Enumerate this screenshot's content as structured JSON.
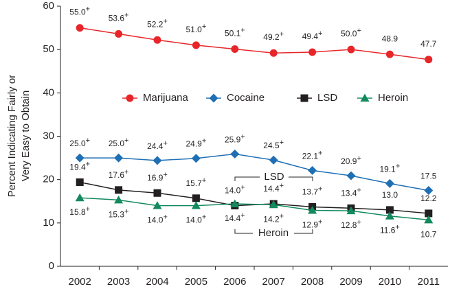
{
  "chart_data": {
    "type": "line",
    "ylabel": [
      "Percent Indicating Fairly or",
      "Very Easy to Obtain"
    ],
    "categories": [
      "2002",
      "2003",
      "2004",
      "2005",
      "2006",
      "2007",
      "2008",
      "2009",
      "2010",
      "2011"
    ],
    "ylim": [
      0,
      60
    ],
    "yticks": [
      0,
      10,
      20,
      30,
      40,
      50,
      60
    ],
    "series": [
      {
        "name": "Marijuana",
        "color": "#e8262a",
        "marker": "circle",
        "values": [
          55.0,
          53.6,
          52.2,
          51.0,
          50.1,
          49.2,
          49.4,
          50.0,
          48.9,
          47.7
        ],
        "value_labels": [
          "55.0+",
          "53.6+",
          "52.2+",
          "51.0+",
          "50.1+",
          "49.2+",
          "49.4+",
          "50.0+",
          "48.9",
          "47.7"
        ]
      },
      {
        "name": "Cocaine",
        "color": "#1f6fb4",
        "marker": "diamond",
        "values": [
          25.0,
          25.0,
          24.4,
          24.9,
          25.9,
          24.5,
          22.1,
          20.9,
          19.1,
          17.5
        ],
        "value_labels": [
          "25.0+",
          "25.0+",
          "24.4+",
          "24.9+",
          "25.9+",
          "24.5+",
          "22.1+",
          "20.9+",
          "19.1+",
          "17.5"
        ]
      },
      {
        "name": "LSD",
        "color": "#231f20",
        "marker": "square",
        "values": [
          19.4,
          17.6,
          16.9,
          15.7,
          14.0,
          14.4,
          13.7,
          13.4,
          13.0,
          12.2
        ],
        "value_labels": [
          "19.4+",
          "17.6+",
          "16.9+",
          "15.7+",
          "14.0+",
          "14.4+",
          "13.7+",
          "13.4+",
          "13.0",
          "12.2"
        ]
      },
      {
        "name": "Heroin",
        "color": "#138a5e",
        "marker": "triangle",
        "values": [
          15.8,
          15.3,
          14.0,
          14.0,
          14.4,
          14.2,
          12.9,
          12.8,
          11.6,
          10.7
        ],
        "value_labels": [
          "15.8+",
          "15.3+",
          "14.0+",
          "14.0+",
          "14.4+",
          "14.2+",
          "12.9+",
          "12.8+",
          "11.6+",
          "10.7"
        ]
      }
    ],
    "annotations": [
      "LSD",
      "Heroin"
    ]
  }
}
